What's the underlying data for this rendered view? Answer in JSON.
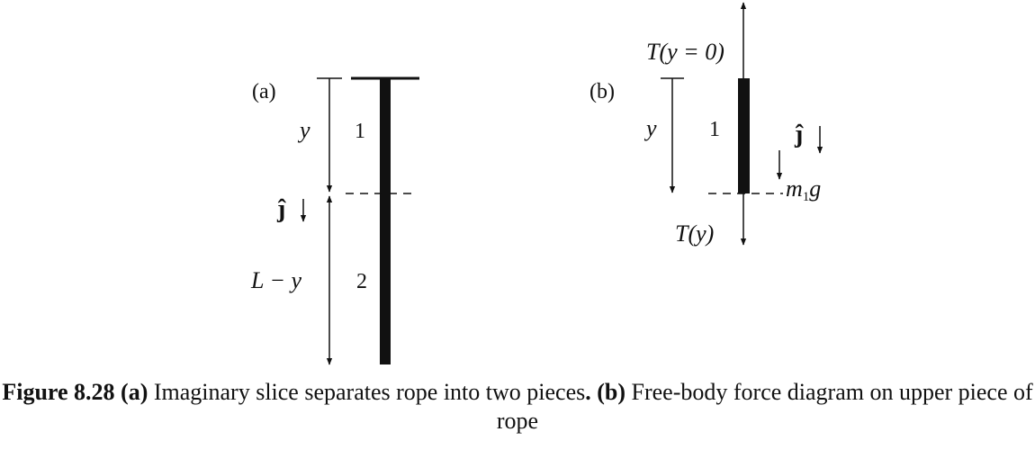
{
  "panel_a": {
    "tag": "(a)",
    "y_label": "y",
    "unit_vector": "ĵ",
    "lower_label": "L − y",
    "piece1": "1",
    "piece2": "2"
  },
  "panel_b": {
    "tag": "(b)",
    "top_force": "T(y = 0)",
    "y_label": "y",
    "piece1": "1",
    "unit_vector": "ĵ",
    "weight_m": "m",
    "weight_sub": "1",
    "weight_g": "g",
    "bottom_force": "T(y)"
  },
  "caption": {
    "label": "Figure 8.28",
    "part_a": "(a)",
    "text_a": " Imaginary slice separates rope into two pieces",
    "dot": ".",
    "part_b": "(b)",
    "text_b": " Free-body force diagram on upper piece of rope"
  }
}
